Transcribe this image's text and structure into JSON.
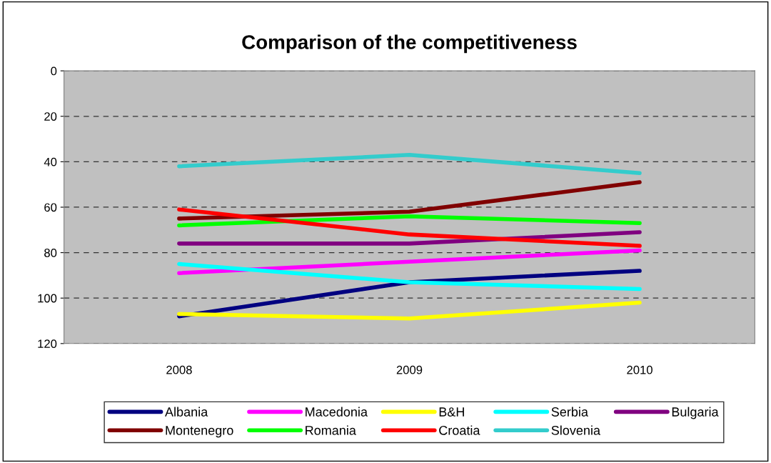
{
  "chart_data": {
    "type": "line",
    "title": "Comparison of the competitiveness",
    "categories": [
      "2008",
      "2009",
      "2010"
    ],
    "series": [
      {
        "name": "Albania",
        "color": "#000080",
        "values": [
          108,
          93,
          88
        ]
      },
      {
        "name": "Macedonia",
        "color": "#ff00ff",
        "values": [
          89,
          84,
          79
        ]
      },
      {
        "name": "B&H",
        "color": "#ffff00",
        "values": [
          107,
          109,
          102
        ]
      },
      {
        "name": "Serbia",
        "color": "#00ffff",
        "values": [
          85,
          93,
          96
        ]
      },
      {
        "name": "Bulgaria",
        "color": "#800080",
        "values": [
          76,
          76,
          71
        ]
      },
      {
        "name": "Montenegro",
        "color": "#800000",
        "values": [
          65,
          62,
          49
        ]
      },
      {
        "name": "Romania",
        "color": "#00ff00",
        "values": [
          68,
          64,
          67
        ]
      },
      {
        "name": "Croatia",
        "color": "#ff0000",
        "values": [
          61,
          72,
          77
        ]
      },
      {
        "name": "Slovenia",
        "color": "#33cccc",
        "values": [
          42,
          37,
          45
        ]
      }
    ],
    "ylim": [
      120,
      0
    ],
    "yticks": [
      0,
      20,
      40,
      60,
      80,
      100,
      120
    ],
    "grid": "y",
    "legend": "bottom",
    "marker": "none",
    "line_style": "solid"
  }
}
